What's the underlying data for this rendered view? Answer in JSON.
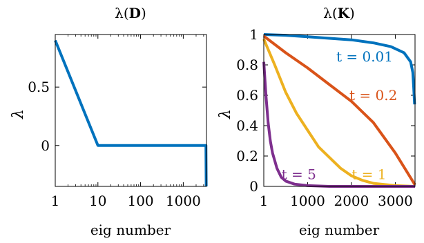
{
  "chart_data": [
    {
      "type": "line",
      "title_prefix": "λ(",
      "title_bold": "D",
      "title_suffix": ")",
      "xlabel": "eig number",
      "ylabel": "λ",
      "xscale": "log",
      "xlim": [
        1,
        3500
      ],
      "ylim": [
        -0.35,
        0.95
      ],
      "xticks": [
        {
          "v": 1,
          "label": "1"
        },
        {
          "v": 10,
          "label": "10"
        },
        {
          "v": 100,
          "label": "100"
        },
        {
          "v": 1000,
          "label": "1000"
        }
      ],
      "yticks": [
        {
          "v": 0,
          "label": "0"
        },
        {
          "v": 0.5,
          "label": "0.5"
        }
      ],
      "series": [
        {
          "color": "#0072BD",
          "points": [
            [
              1,
              0.9
            ],
            [
              10,
              0.0
            ],
            [
              3400,
              0.0
            ],
            [
              3450,
              -0.35
            ]
          ]
        }
      ]
    },
    {
      "type": "line",
      "title_prefix": "λ(",
      "title_bold": "K",
      "title_suffix": ")",
      "xlabel": "eig number",
      "ylabel": "λ",
      "xscale": "linear",
      "xlim": [
        1,
        3450
      ],
      "ylim": [
        0,
        1
      ],
      "xticks": [
        {
          "v": 1,
          "label": "1"
        },
        {
          "v": 1000,
          "label": "1000"
        },
        {
          "v": 2000,
          "label": "2000"
        },
        {
          "v": 3000,
          "label": "3000"
        }
      ],
      "yticks": [
        {
          "v": 0,
          "label": "0"
        },
        {
          "v": 0.2,
          "label": "0.2"
        },
        {
          "v": 0.4,
          "label": "0.4"
        },
        {
          "v": 0.6,
          "label": "0.6"
        },
        {
          "v": 0.8,
          "label": "0.8"
        },
        {
          "v": 1,
          "label": "1"
        }
      ],
      "series": [
        {
          "label": "t = 0.01",
          "label_at": [
            2300,
            0.855
          ],
          "color": "#0072BD",
          "points": [
            [
              1,
              1.0
            ],
            [
              500,
              0.995
            ],
            [
              1000,
              0.985
            ],
            [
              1500,
              0.975
            ],
            [
              2000,
              0.965
            ],
            [
              2500,
              0.945
            ],
            [
              2900,
              0.92
            ],
            [
              3200,
              0.88
            ],
            [
              3350,
              0.82
            ],
            [
              3400,
              0.75
            ],
            [
              3420,
              0.65
            ],
            [
              3440,
              0.54
            ]
          ]
        },
        {
          "label": "t = 0.2",
          "label_at": [
            2500,
            0.6
          ],
          "color": "#D95319",
          "points": [
            [
              1,
              0.99
            ],
            [
              500,
              0.88
            ],
            [
              1000,
              0.78
            ],
            [
              1500,
              0.67
            ],
            [
              2000,
              0.56
            ],
            [
              2500,
              0.42
            ],
            [
              3000,
              0.22
            ],
            [
              3450,
              0.01
            ]
          ]
        },
        {
          "label": "t = 1",
          "label_at": [
            2400,
            0.08
          ],
          "color": "#EDB120",
          "points": [
            [
              1,
              0.97
            ],
            [
              250,
              0.8
            ],
            [
              500,
              0.62
            ],
            [
              750,
              0.48
            ],
            [
              1000,
              0.37
            ],
            [
              1250,
              0.26
            ],
            [
              1500,
              0.19
            ],
            [
              1750,
              0.12
            ],
            [
              2000,
              0.07
            ],
            [
              2250,
              0.04
            ],
            [
              2500,
              0.02
            ],
            [
              3000,
              0.005
            ],
            [
              3450,
              0.0
            ]
          ]
        },
        {
          "label": "t = 5",
          "label_at": [
            800,
            0.08
          ],
          "color": "#7E2F8E",
          "points": [
            [
              1,
              0.82
            ],
            [
              50,
              0.6
            ],
            [
              100,
              0.42
            ],
            [
              150,
              0.3
            ],
            [
              200,
              0.22
            ],
            [
              300,
              0.12
            ],
            [
              400,
              0.06
            ],
            [
              500,
              0.035
            ],
            [
              700,
              0.015
            ],
            [
              1000,
              0.005
            ],
            [
              1500,
              0.0
            ],
            [
              3450,
              0.0
            ]
          ]
        }
      ]
    }
  ]
}
